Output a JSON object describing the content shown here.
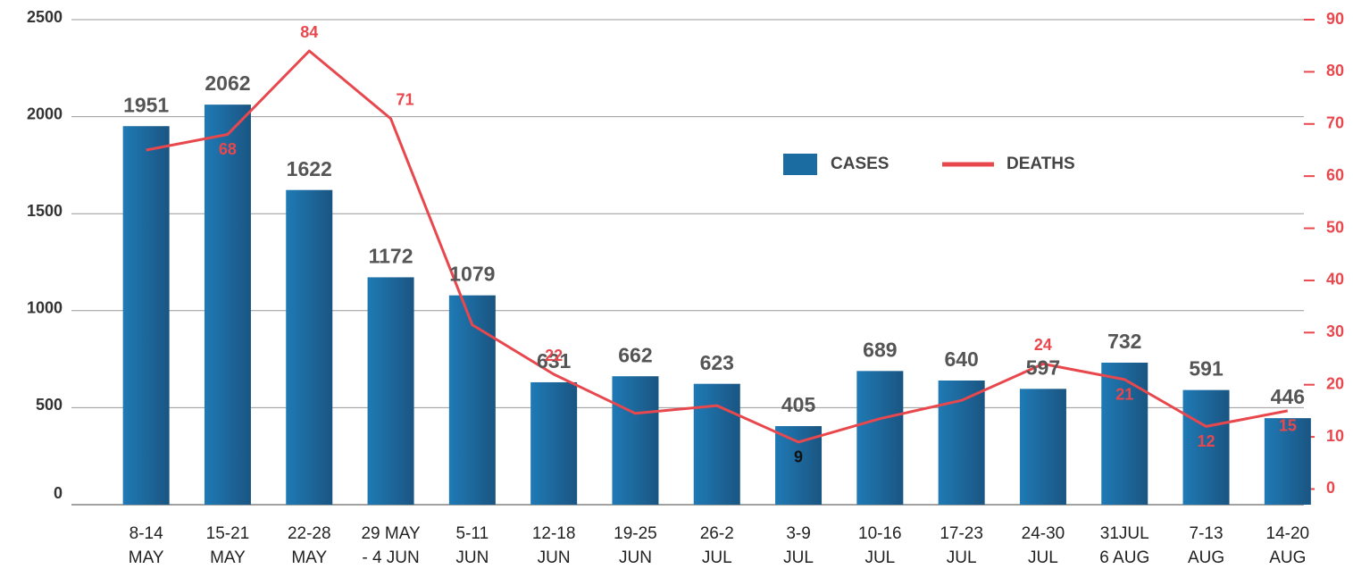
{
  "chart_data": {
    "type": "bar_line",
    "categories": [
      [
        "8-14",
        "MAY"
      ],
      [
        "15-21",
        "MAY"
      ],
      [
        "22-28",
        "MAY"
      ],
      [
        "29 MAY",
        "- 4 JUN"
      ],
      [
        "5-11",
        "JUN"
      ],
      [
        "12-18",
        "JUN"
      ],
      [
        "19-25",
        "JUN"
      ],
      [
        "26-2",
        "JUL"
      ],
      [
        "3-9",
        "JUL"
      ],
      [
        "10-16",
        "JUL"
      ],
      [
        "17-23",
        "JUL"
      ],
      [
        "24-30",
        "JUL"
      ],
      [
        "31JUL",
        "6 AUG"
      ],
      [
        "7-13",
        "AUG"
      ],
      [
        "14-20",
        "AUG"
      ]
    ],
    "series": [
      {
        "name": "CASES",
        "type": "bar",
        "color": "#1b6da1",
        "axis": "y",
        "values": [
          1951,
          2062,
          1622,
          1172,
          1079,
          631,
          662,
          623,
          405,
          689,
          640,
          597,
          732,
          591,
          446
        ]
      },
      {
        "name": "DEATHS",
        "type": "line",
        "color": "#e8484d",
        "axis": "y2",
        "values": [
          65,
          68,
          84,
          71,
          31.5,
          22,
          14.5,
          16,
          9,
          13.5,
          17,
          24,
          21,
          12,
          15
        ],
        "value_labels": [
          null,
          "68",
          "84",
          "71",
          null,
          "22",
          null,
          null,
          "9",
          null,
          null,
          "24",
          "21",
          "12",
          "15"
        ]
      }
    ],
    "ylim": [
      0,
      2500
    ],
    "yticks": [
      0,
      500,
      1000,
      1500,
      2000,
      2500
    ],
    "y2lim": [
      -3,
      90
    ],
    "y2ticks": [
      0,
      10,
      20,
      30,
      40,
      50,
      60,
      70,
      80,
      90
    ],
    "grid": true
  }
}
